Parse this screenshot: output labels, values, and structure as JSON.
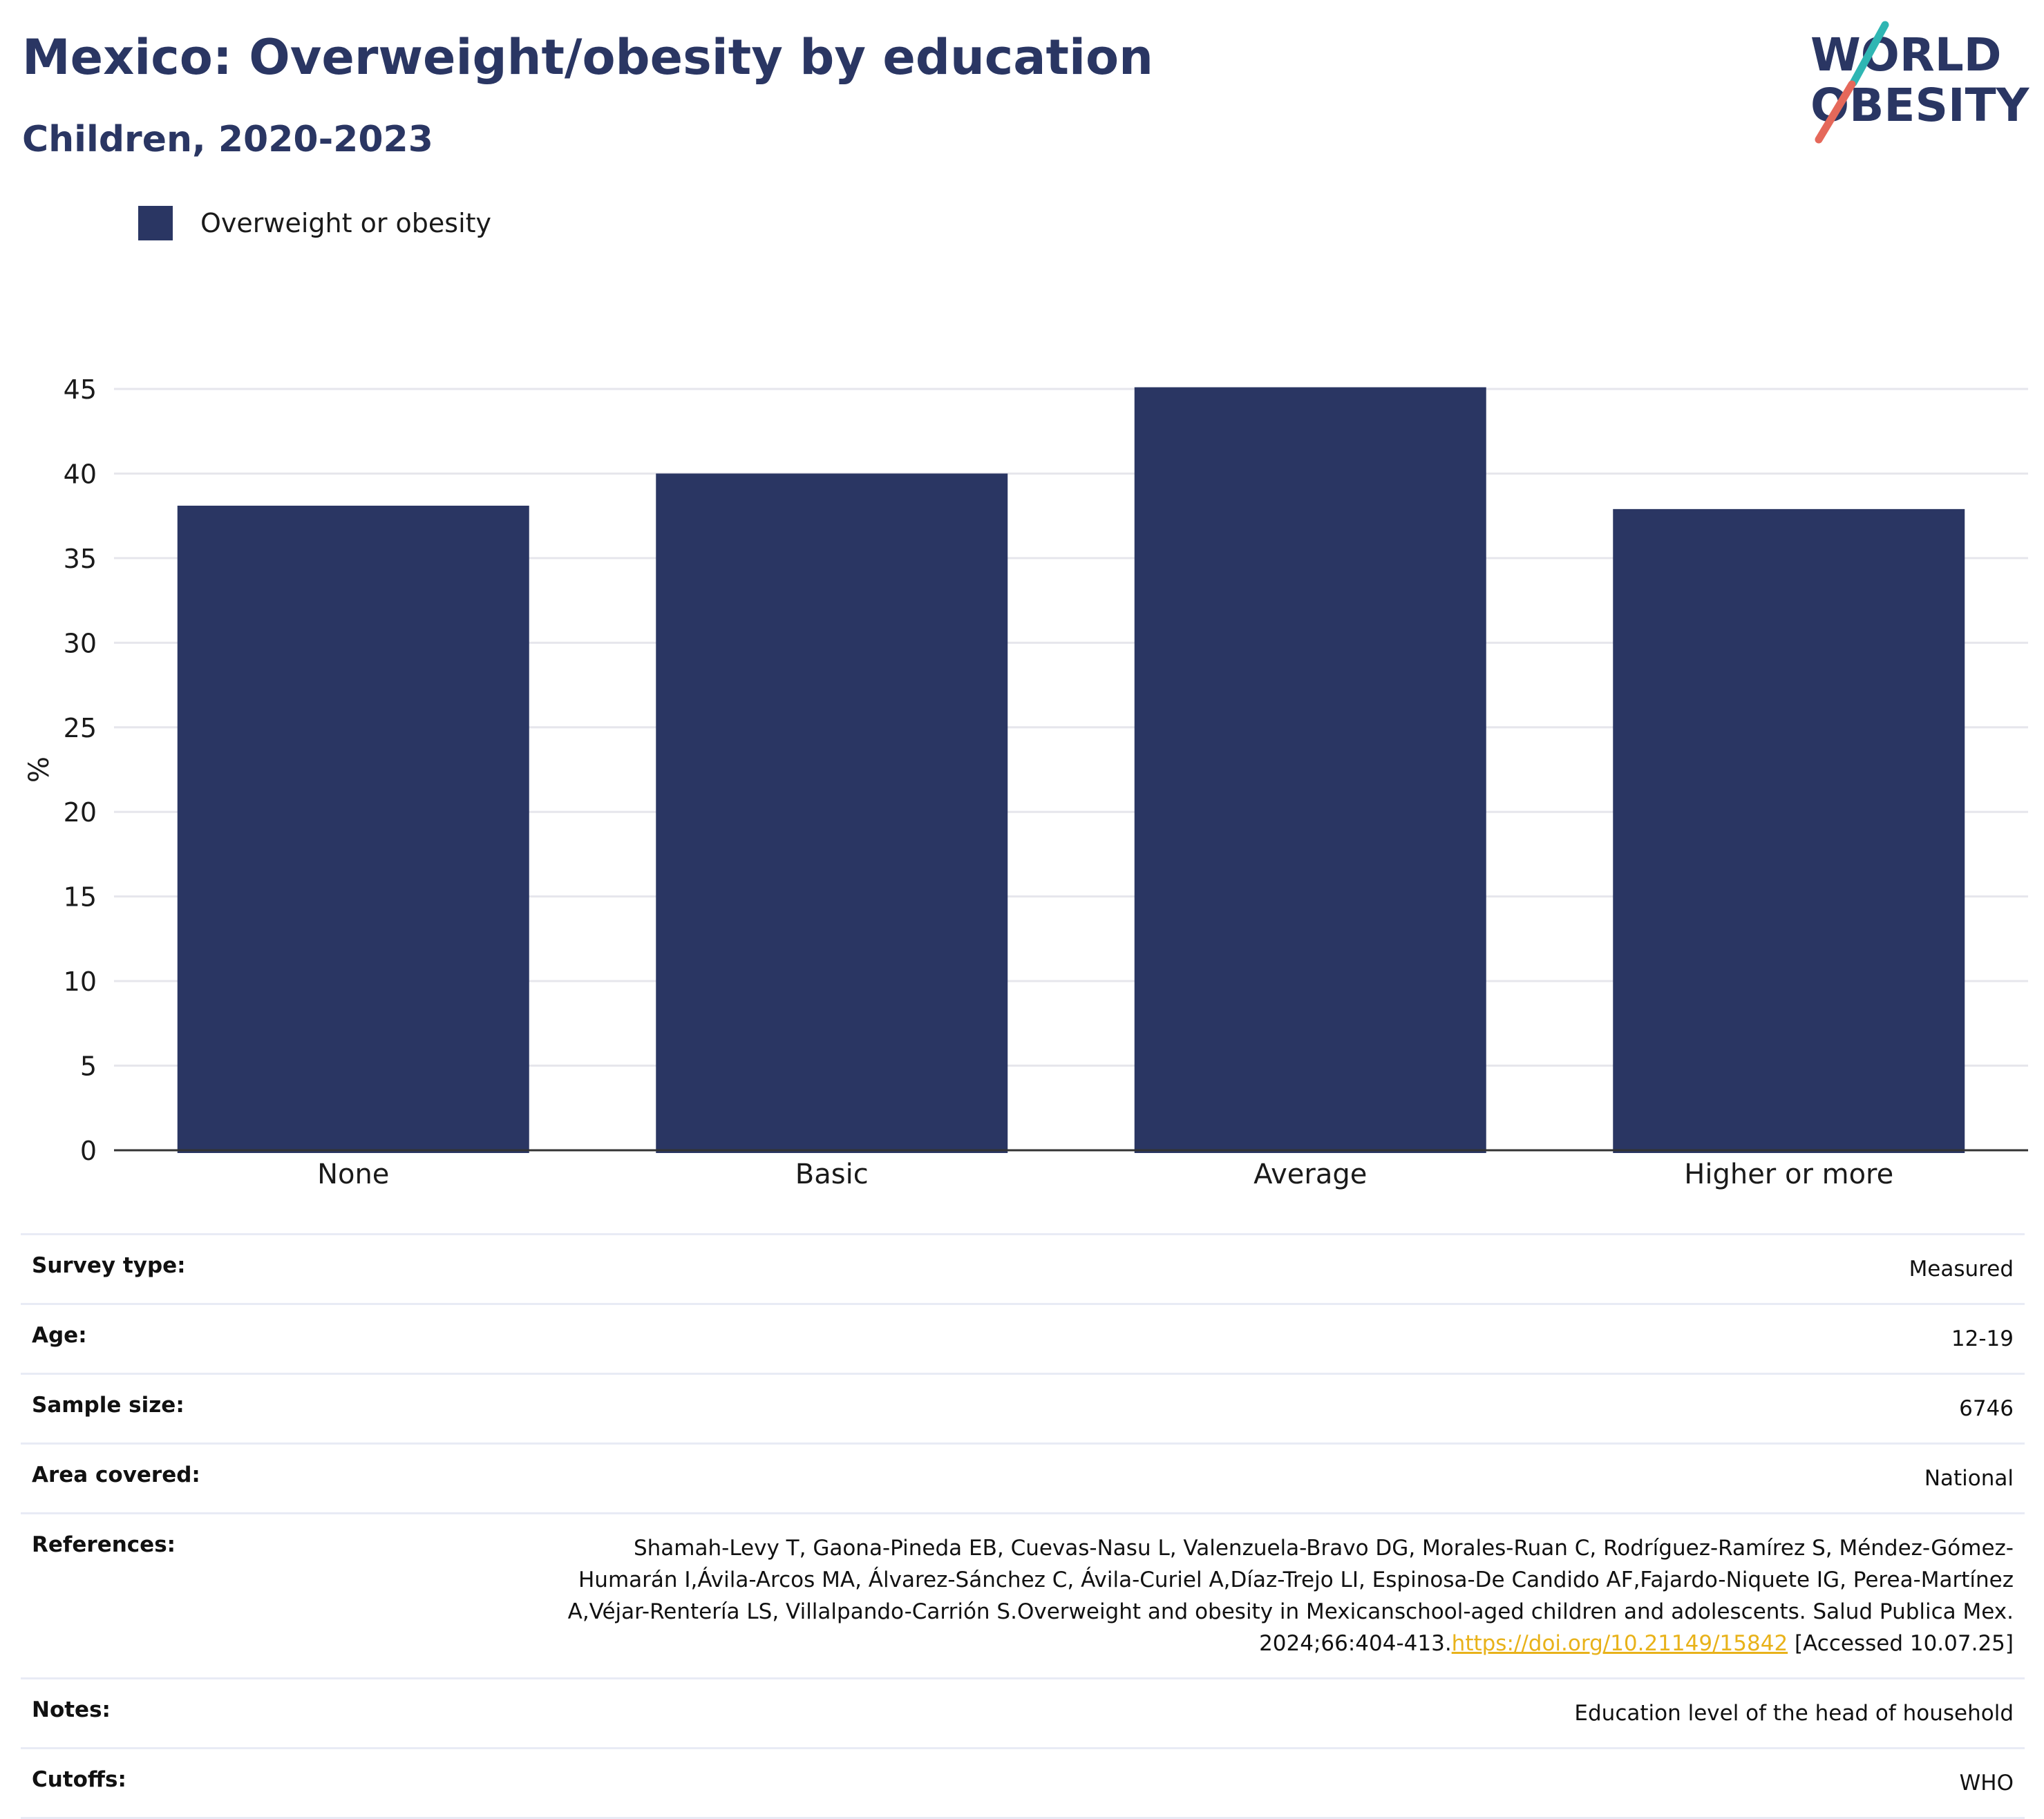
{
  "header": {
    "title": "Mexico: Overweight/obesity by education",
    "subtitle": "Children, 2020-2023"
  },
  "logo": {
    "line1": "WORLD",
    "line2": "OBESITY",
    "colors": {
      "navy": "#2a3663",
      "teal": "#2fb6b3",
      "coral": "#e5685a"
    }
  },
  "colors": {
    "bar": "#2a3663",
    "grid": "#e6e6ec",
    "axis": "#333333",
    "link": "#e8b21a"
  },
  "chart_data": {
    "type": "bar",
    "categories": [
      "None",
      "Basic",
      "Average",
      "Higher or more"
    ],
    "series": [
      {
        "name": "Overweight or obesity",
        "values": [
          38.1,
          40.0,
          45.1,
          37.9
        ]
      }
    ],
    "ylabel": "%",
    "xlabel": "",
    "ylim": [
      0,
      45
    ],
    "yticks": [
      0,
      5,
      10,
      15,
      20,
      25,
      30,
      35,
      40,
      45
    ],
    "grid": true,
    "legend_position": "top-left"
  },
  "meta": {
    "rows": [
      {
        "key": "Survey type:",
        "value": "Measured"
      },
      {
        "key": "Age:",
        "value": "12-19"
      },
      {
        "key": "Sample size:",
        "value": "6746"
      },
      {
        "key": "Area covered:",
        "value": "National"
      }
    ],
    "references": {
      "key": "References:",
      "text": "Shamah-Levy T, Gaona-Pineda EB, Cuevas-Nasu L, Valenzuela-Bravo DG, Morales-Ruan C, Rodríguez-Ramírez S, Méndez-Gómez-Humarán I,Ávila-Arcos MA, Álvarez-Sánchez C, Ávila-Curiel A,Díaz-Trejo LI, Espinosa-De Candido AF,Fajardo-Niquete IG, Perea-Martínez A,Véjar-Rentería LS, Villalpando-Carrión S.Overweight and obesity in Mexicanschool-aged children and adolescents. Salud Publica Mex. 2024;66:404-413.",
      "link": "https://doi.org/10.21149/15842",
      "suffix": " [Accessed 10.07.25]"
    },
    "tail_rows": [
      {
        "key": "Notes:",
        "value": "Education level of the head of household"
      },
      {
        "key": "Cutoffs:",
        "value": "WHO"
      }
    ]
  }
}
